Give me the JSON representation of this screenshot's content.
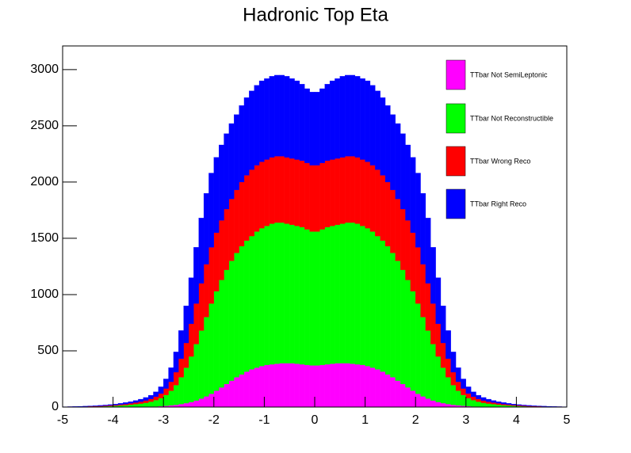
{
  "chart_data": {
    "type": "stacked_histogram",
    "title": "Hadronic Top Eta",
    "bins": [
      -5,
      -4.9,
      -4.8,
      -4.7,
      -4.6,
      -4.5,
      -4.4,
      -4.3,
      -4.2,
      -4.1,
      -4,
      -3.9,
      -3.8,
      -3.7,
      -3.6,
      -3.5,
      -3.4,
      -3.3,
      -3.2,
      -3.1,
      -3,
      -2.9,
      -2.8,
      -2.7,
      -2.6,
      -2.5,
      -2.4,
      -2.3,
      -2.2,
      -2.1,
      -2,
      -1.9,
      -1.8,
      -1.7,
      -1.6,
      -1.5,
      -1.4,
      -1.3,
      -1.2,
      -1.1,
      -1,
      -0.9,
      -0.8,
      -0.7,
      -0.6,
      -0.5,
      -0.4,
      -0.3,
      -0.2,
      -0.1,
      0,
      0.1,
      0.2,
      0.3,
      0.4,
      0.5,
      0.6,
      0.7,
      0.8,
      0.9,
      1,
      1.1,
      1.2,
      1.3,
      1.4,
      1.5,
      1.6,
      1.7,
      1.8,
      1.9,
      2,
      2.1,
      2.2,
      2.3,
      2.4,
      2.5,
      2.6,
      2.7,
      2.8,
      2.9,
      3,
      3.1,
      3.2,
      3.3,
      3.4,
      3.5,
      3.6,
      3.7,
      3.8,
      3.9,
      4,
      4.1,
      4.2,
      4.3,
      4.4,
      4.5,
      4.6,
      4.7,
      4.8,
      4.9,
      5
    ],
    "series": [
      {
        "name": "TTbar Not SemiLeptonic",
        "color": "#ff00ff",
        "values": [
          0,
          0,
          0,
          0,
          0,
          0,
          0,
          0,
          0,
          1,
          1,
          1,
          1,
          2,
          2,
          3,
          4,
          5,
          6,
          8,
          11,
          15,
          20,
          27,
          35,
          45,
          58,
          75,
          95,
          118,
          145,
          175,
          205,
          235,
          265,
          290,
          315,
          335,
          350,
          365,
          375,
          380,
          385,
          390,
          390,
          390,
          385,
          380,
          375,
          370,
          370,
          375,
          380,
          385,
          390,
          390,
          390,
          385,
          380,
          375,
          365,
          350,
          335,
          315,
          290,
          265,
          235,
          205,
          175,
          145,
          118,
          95,
          75,
          58,
          45,
          35,
          27,
          20,
          15,
          11,
          8,
          6,
          5,
          4,
          3,
          2,
          2,
          1,
          1,
          1,
          1,
          0,
          0,
          0,
          0,
          0,
          0,
          0,
          0,
          0
        ]
      },
      {
        "name": "TTbar Not Reconstructible",
        "color": "#00ff00",
        "values": [
          1,
          1,
          2,
          2,
          3,
          4,
          5,
          6,
          7,
          8,
          10,
          13,
          16,
          19,
          24,
          28,
          34,
          43,
          56,
          72,
          97,
          130,
          175,
          238,
          315,
          405,
          502,
          605,
          705,
          802,
          885,
          955,
          1015,
          1065,
          1105,
          1140,
          1165,
          1185,
          1210,
          1225,
          1235,
          1250,
          1255,
          1250,
          1240,
          1230,
          1225,
          1220,
          1205,
          1190,
          1190,
          1205,
          1220,
          1225,
          1230,
          1240,
          1250,
          1255,
          1250,
          1235,
          1225,
          1210,
          1185,
          1165,
          1140,
          1105,
          1065,
          1015,
          955,
          885,
          802,
          705,
          605,
          502,
          405,
          315,
          238,
          175,
          130,
          97,
          72,
          56,
          43,
          34,
          28,
          24,
          19,
          16,
          13,
          10,
          8,
          7,
          6,
          5,
          4,
          3,
          2,
          2,
          1,
          1
        ]
      },
      {
        "name": "TTbar Wrong Reco",
        "color": "#ff0000",
        "values": [
          1,
          2,
          1,
          2,
          2,
          3,
          3,
          4,
          5,
          6,
          7,
          8,
          10,
          12,
          14,
          17,
          20,
          24,
          30,
          40,
          57,
          80,
          115,
          165,
          220,
          290,
          360,
          420,
          470,
          500,
          520,
          530,
          540,
          550,
          560,
          570,
          580,
          590,
          590,
          590,
          590,
          590,
          590,
          590,
          590,
          590,
          590,
          590,
          590,
          590,
          590,
          590,
          590,
          590,
          590,
          590,
          590,
          590,
          590,
          590,
          590,
          590,
          590,
          580,
          570,
          560,
          550,
          540,
          530,
          520,
          500,
          470,
          420,
          360,
          290,
          220,
          165,
          115,
          80,
          57,
          40,
          30,
          24,
          20,
          17,
          14,
          12,
          10,
          8,
          7,
          6,
          5,
          4,
          3,
          3,
          2,
          2,
          1,
          2,
          1
        ]
      },
      {
        "name": "TTbar Right Reco",
        "color": "#0000ff",
        "values": [
          1,
          1,
          2,
          2,
          3,
          3,
          4,
          5,
          6,
          7,
          9,
          11,
          13,
          15,
          18,
          22,
          27,
          33,
          43,
          60,
          85,
          125,
          180,
          250,
          330,
          410,
          500,
          580,
          630,
          660,
          670,
          670,
          670,
          670,
          670,
          680,
          690,
          700,
          710,
          720,
          720,
          720,
          720,
          720,
          720,
          710,
          700,
          680,
          660,
          650,
          650,
          660,
          680,
          700,
          710,
          720,
          720,
          720,
          720,
          720,
          720,
          710,
          700,
          690,
          680,
          670,
          670,
          670,
          670,
          670,
          660,
          630,
          580,
          500,
          410,
          330,
          250,
          180,
          125,
          85,
          60,
          43,
          33,
          27,
          22,
          18,
          15,
          13,
          11,
          9,
          7,
          6,
          5,
          4,
          3,
          3,
          2,
          2,
          1,
          1
        ]
      }
    ],
    "xlim": [
      -5,
      5
    ],
    "xticks": [
      -5,
      -4,
      -3,
      -2,
      -1,
      0,
      1,
      2,
      3,
      4,
      5
    ],
    "ylim": [
      0,
      3210
    ],
    "yticks": [
      0,
      500,
      1000,
      1500,
      2000,
      2500,
      3000
    ],
    "legend": "upper right"
  }
}
